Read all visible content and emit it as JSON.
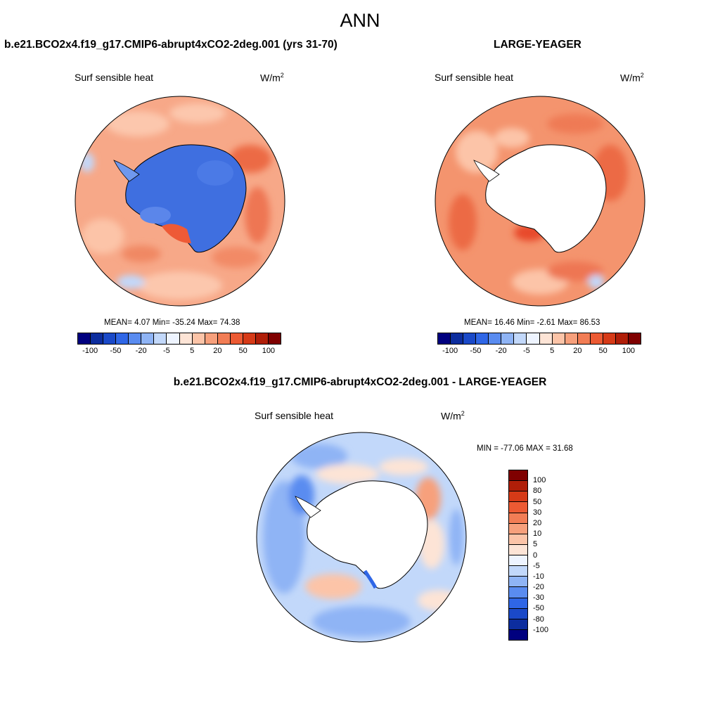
{
  "figure": {
    "title": "ANN",
    "left_title": "b.e21.BCO2x4.f19_g17.CMIP6-abrupt4xCO2-2deg.001 (yrs 31-70)",
    "right_title": "LARGE-YEAGER",
    "bottom_title": "b.e21.BCO2x4.f19_g17.CMIP6-abrupt4xCO2-2deg.001 - LARGE-YEAGER"
  },
  "panels": {
    "left": {
      "variable": "Surf sensible heat",
      "units_base": "W/m",
      "units_exp": "2",
      "stats": "MEAN=   4.07  Min= -35.24  Max=  74.38"
    },
    "right": {
      "variable": "Surf sensible heat",
      "units_base": "W/m",
      "units_exp": "2",
      "stats": "MEAN=  16.46  Min=  -2.61  Max=  86.53"
    },
    "bottom": {
      "variable": "Surf sensible heat",
      "units_base": "W/m",
      "units_exp": "2",
      "stats": "MIN = -77.06 MAX =  31.68"
    }
  },
  "colorbar_top": {
    "colors": [
      "#00007f",
      "#0c2d9e",
      "#1a49c8",
      "#2f66e6",
      "#5a8cf0",
      "#8fb4f5",
      "#c2d8fa",
      "#eef4ff",
      "#fde4d6",
      "#fcc4a8",
      "#f7a07c",
      "#f27d55",
      "#ec5a33",
      "#d63a17",
      "#b01e08",
      "#7f0000"
    ],
    "tick_labels": [
      "-100",
      "-50",
      "-20",
      "-5",
      "5",
      "20",
      "50",
      "100"
    ]
  },
  "colorbar_bottom": {
    "colors": [
      "#7f0000",
      "#b01e08",
      "#d63a17",
      "#ec5a33",
      "#f27d55",
      "#f7a07c",
      "#fcc4a8",
      "#fde4d6",
      "#eef4ff",
      "#c2d8fa",
      "#8fb4f5",
      "#5a8cf0",
      "#2f66e6",
      "#1a49c8",
      "#0c2d9e",
      "#00007f"
    ],
    "tick_labels": [
      "100",
      "80",
      "50",
      "30",
      "20",
      "10",
      "5",
      "0",
      "-5",
      "-10",
      "-20",
      "-30",
      "-50",
      "-80",
      "-100"
    ]
  }
}
